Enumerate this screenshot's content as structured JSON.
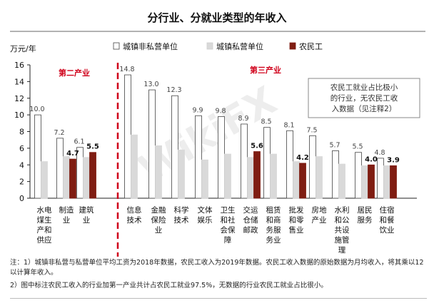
{
  "chart_data": {
    "type": "bar",
    "title": "分行业、分就业类型的年收入",
    "ylabel": "万元/年",
    "ylim": [
      0,
      16
    ],
    "yticks": [
      "0",
      "2",
      "4",
      "6",
      "8",
      "10",
      "12",
      "14",
      "16"
    ],
    "grid": false,
    "legend_position": "top-right",
    "section_labels": [
      "第二产业",
      "第三产业"
    ],
    "categories": [
      "水电煤生产和供应",
      "制造业",
      "建筑业",
      "信息技术",
      "金融保险业",
      "科学技术",
      "文体娱乐",
      "卫生和社会保障",
      "交运仓储邮政",
      "租赁和商务服务业",
      "批发和零售业",
      "房地产业",
      "水利和公共设施管理",
      "居民服务",
      "住宿和餐饮业"
    ],
    "category_labels": [
      [
        "水电",
        "煤生",
        "产和",
        "供应"
      ],
      [
        "制造",
        "业"
      ],
      [
        "建筑",
        "业"
      ],
      [
        "信息",
        "技术"
      ],
      [
        "金融",
        "保险",
        "业"
      ],
      [
        "科学",
        "技术"
      ],
      [
        "文体",
        "娱乐"
      ],
      [
        "卫生",
        "和社",
        "会保",
        "障"
      ],
      [
        "交运",
        "仓储",
        "邮政"
      ],
      [
        "租赁",
        "和商",
        "务服",
        "务业"
      ],
      [
        "批发",
        "和零",
        "售业"
      ],
      [
        "房地",
        "产业"
      ],
      [
        "水利",
        "和公",
        "共设",
        "施管",
        "理"
      ],
      [
        "居民",
        "服务"
      ],
      [
        "住宿",
        "和餐",
        "饮业"
      ]
    ],
    "series": [
      {
        "name": "城镇非私营单位",
        "color": "#ffffff",
        "values": [
          10.0,
          7.2,
          6.1,
          14.8,
          13.0,
          12.3,
          9.9,
          9.8,
          8.9,
          8.5,
          8.1,
          7.5,
          5.7,
          5.5,
          4.8
        ],
        "labels": [
          "10.0",
          "7.2",
          "6.1",
          "14.8",
          "13.0",
          "12.3",
          "9.9",
          "9.8",
          "8.9",
          "8.5",
          "8.1",
          "7.5",
          "5.7",
          "5.5",
          "4.8"
        ]
      },
      {
        "name": "城镇私营单位",
        "color": "#d9d9d9",
        "values": [
          4.4,
          5.0,
          4.9,
          7.6,
          6.3,
          5.8,
          4.6,
          5.3,
          4.9,
          5.3,
          4.4,
          5.0,
          4.1,
          3.9,
          3.9
        ],
        "labels": null
      },
      {
        "name": "农民工",
        "color": "#7f1d12",
        "values": [
          null,
          4.7,
          5.5,
          null,
          null,
          null,
          null,
          null,
          5.6,
          null,
          4.2,
          null,
          null,
          4.0,
          3.9
        ],
        "labels": [
          null,
          "4.7",
          "5.5",
          null,
          null,
          null,
          null,
          null,
          "5.6",
          null,
          "4.2",
          null,
          null,
          "4.0",
          "3.9"
        ]
      }
    ],
    "annotation": "农民工就业占比极小的行业，无农民工收入数据（见注释2）",
    "annotation_lines": [
      "农民工就业占比极小",
      "的行业，无农民工收",
      "入数据（见注释2）"
    ],
    "watermark": "WikiFX"
  },
  "notes": [
    "注：1）城镇非私营与私营单位平均工资为2018年数据，农民工收入为2019年数据。农民工收入数据的原始数据为月均收入，将其乘以12以计算年收入。",
    "2）图中标注农民工收入的行业加第一产业共计占农民工就业97.5%，无数据的行业农民工就业占比很小。"
  ]
}
